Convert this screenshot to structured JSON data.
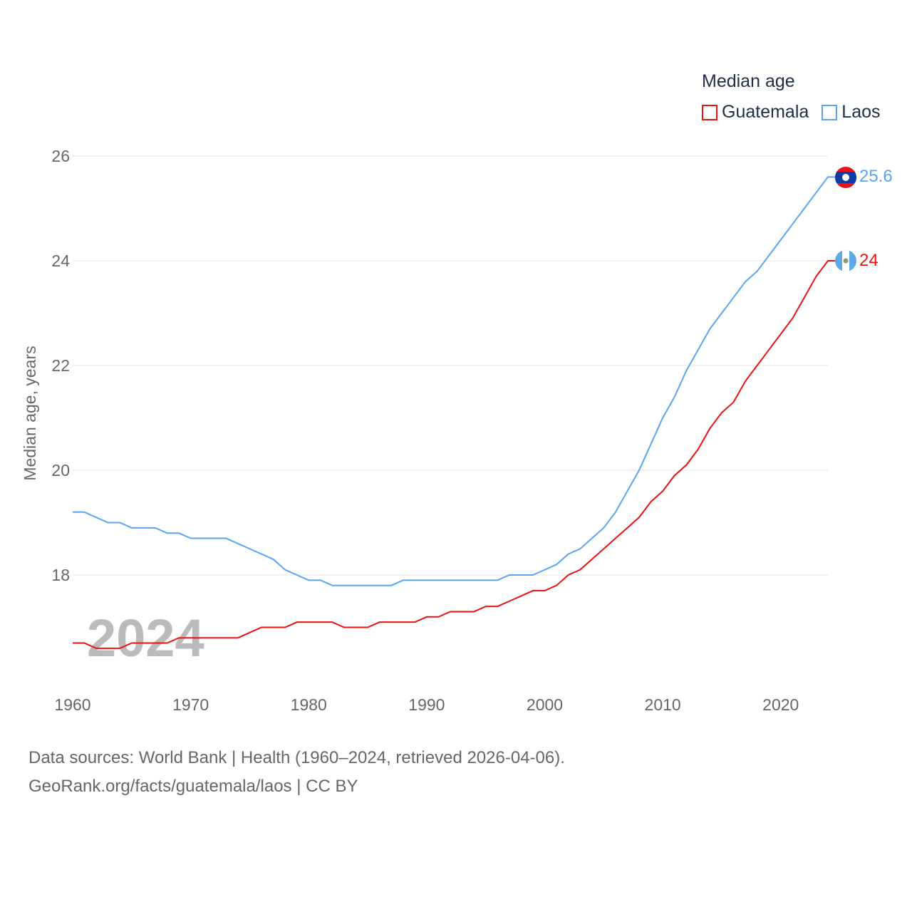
{
  "chart_data": {
    "type": "line",
    "title": "Median age",
    "ylabel": "Median age, years",
    "xlabel": "",
    "xlim": [
      1960,
      2024
    ],
    "ylim": [
      16,
      26
    ],
    "xticks": [
      "1960",
      "1970",
      "1980",
      "1990",
      "2000",
      "2010",
      "2020"
    ],
    "yticks": [
      "18",
      "20",
      "22",
      "24",
      "26"
    ],
    "year_watermark": "2024",
    "x": [
      1960,
      1961,
      1962,
      1963,
      1964,
      1965,
      1966,
      1967,
      1968,
      1969,
      1970,
      1971,
      1972,
      1973,
      1974,
      1975,
      1976,
      1977,
      1978,
      1979,
      1980,
      1981,
      1982,
      1983,
      1984,
      1985,
      1986,
      1987,
      1988,
      1989,
      1990,
      1991,
      1992,
      1993,
      1994,
      1995,
      1996,
      1997,
      1998,
      1999,
      2000,
      2001,
      2002,
      2003,
      2004,
      2005,
      2006,
      2007,
      2008,
      2009,
      2010,
      2011,
      2012,
      2013,
      2014,
      2015,
      2016,
      2017,
      2018,
      2019,
      2020,
      2021,
      2022,
      2023,
      2024
    ],
    "series": [
      {
        "name": "Guatemala",
        "color": "#ee1111",
        "end_label": "24",
        "values": [
          16.7,
          16.7,
          16.6,
          16.6,
          16.6,
          16.7,
          16.7,
          16.7,
          16.7,
          16.8,
          16.8,
          16.8,
          16.8,
          16.8,
          16.8,
          16.9,
          17.0,
          17.0,
          17.0,
          17.1,
          17.1,
          17.1,
          17.1,
          17.0,
          17.0,
          17.0,
          17.1,
          17.1,
          17.1,
          17.1,
          17.2,
          17.2,
          17.3,
          17.3,
          17.3,
          17.4,
          17.4,
          17.5,
          17.6,
          17.7,
          17.7,
          17.8,
          18.0,
          18.1,
          18.3,
          18.5,
          18.7,
          18.9,
          19.1,
          19.4,
          19.6,
          19.9,
          20.1,
          20.4,
          20.8,
          21.1,
          21.3,
          21.7,
          22.0,
          22.3,
          22.6,
          22.9,
          23.3,
          23.7,
          24.0
        ]
      },
      {
        "name": "Laos",
        "color": "#5aa5f0",
        "end_label": "25.6",
        "values": [
          19.2,
          19.2,
          19.1,
          19.0,
          19.0,
          18.9,
          18.9,
          18.9,
          18.8,
          18.8,
          18.7,
          18.7,
          18.7,
          18.7,
          18.6,
          18.5,
          18.4,
          18.3,
          18.1,
          18.0,
          17.9,
          17.9,
          17.8,
          17.8,
          17.8,
          17.8,
          17.8,
          17.8,
          17.9,
          17.9,
          17.9,
          17.9,
          17.9,
          17.9,
          17.9,
          17.9,
          17.9,
          18.0,
          18.0,
          18.0,
          18.1,
          18.2,
          18.4,
          18.5,
          18.7,
          18.9,
          19.2,
          19.6,
          20.0,
          20.5,
          21.0,
          21.4,
          21.9,
          22.3,
          22.7,
          23.0,
          23.3,
          23.6,
          23.8,
          24.1,
          24.4,
          24.7,
          25.0,
          25.3,
          25.6
        ]
      }
    ]
  },
  "footer": {
    "line1": "Data sources: World Bank | Health (1960–2024, retrieved 2026-04-06).",
    "line2": "GeoRank.org/facts/guatemala/laos | CC BY"
  }
}
